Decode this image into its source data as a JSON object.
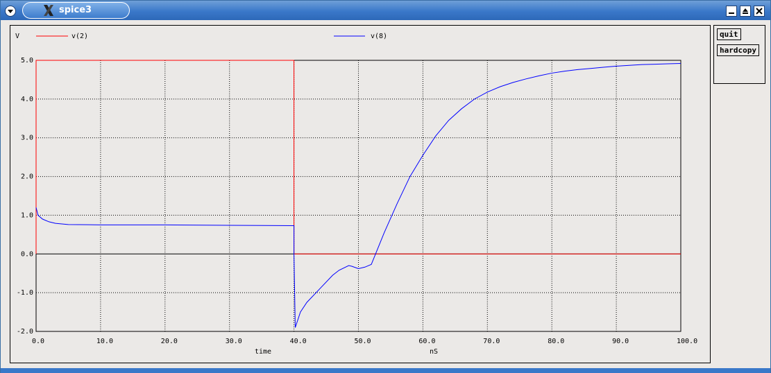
{
  "window": {
    "title": "spice3",
    "menu_icon": "chevron-down-icon",
    "app_icon": "x-logo-icon",
    "controls": [
      "minimize-icon",
      "maximize-icon",
      "close-icon"
    ]
  },
  "side_panel": {
    "quit_label": "quit",
    "hardcopy_label": "hardcopy"
  },
  "chart_data": {
    "type": "line",
    "ylabel": "V",
    "xlabel": "time",
    "xunit": "nS",
    "xlim": [
      0,
      100
    ],
    "ylim": [
      -2,
      5
    ],
    "x_ticks": [
      0,
      10,
      20,
      30,
      40,
      50,
      60,
      70,
      80,
      90,
      100
    ],
    "x_tick_labels": [
      "0.0",
      "10.0",
      "20.0",
      "30.0",
      "40.0",
      "50.0",
      "60.0",
      "70.0",
      "80.0",
      "90.0",
      "100.0"
    ],
    "y_ticks": [
      5,
      4,
      3,
      2,
      1,
      0,
      -1,
      -2
    ],
    "y_tick_labels": [
      "5.0",
      "4.0",
      "3.0",
      "2.0",
      "1.0",
      "0.0",
      "-1.0",
      "-2.0"
    ],
    "grid": true,
    "legend_placement": "top",
    "series": [
      {
        "name": "v(2)",
        "color": "#ff0000",
        "x": [
          0,
          0,
          40,
          40,
          100
        ],
        "y": [
          0,
          5,
          5,
          0,
          0
        ]
      },
      {
        "name": "v(8)",
        "color": "#0000ff",
        "x": [
          0,
          0.3,
          1,
          2,
          3,
          5,
          10,
          20,
          30,
          40,
          40,
          40.2,
          41,
          42,
          44,
          46,
          47,
          48.5,
          49,
          50,
          51,
          52,
          54,
          56,
          58,
          60,
          62,
          64,
          66,
          68,
          70,
          72,
          74,
          76,
          78,
          80,
          82,
          84,
          86,
          88,
          90,
          92,
          94,
          96,
          98,
          100
        ],
        "y": [
          1.2,
          1.0,
          0.9,
          0.83,
          0.79,
          0.76,
          0.75,
          0.75,
          0.74,
          0.73,
          0.0,
          -1.9,
          -1.5,
          -1.25,
          -0.9,
          -0.55,
          -0.42,
          -0.3,
          -0.32,
          -0.38,
          -0.34,
          -0.27,
          0.55,
          1.3,
          2.0,
          2.55,
          3.05,
          3.45,
          3.75,
          4.0,
          4.18,
          4.32,
          4.43,
          4.52,
          4.6,
          4.67,
          4.72,
          4.76,
          4.79,
          4.82,
          4.85,
          4.87,
          4.89,
          4.9,
          4.91,
          4.92
        ]
      }
    ]
  }
}
